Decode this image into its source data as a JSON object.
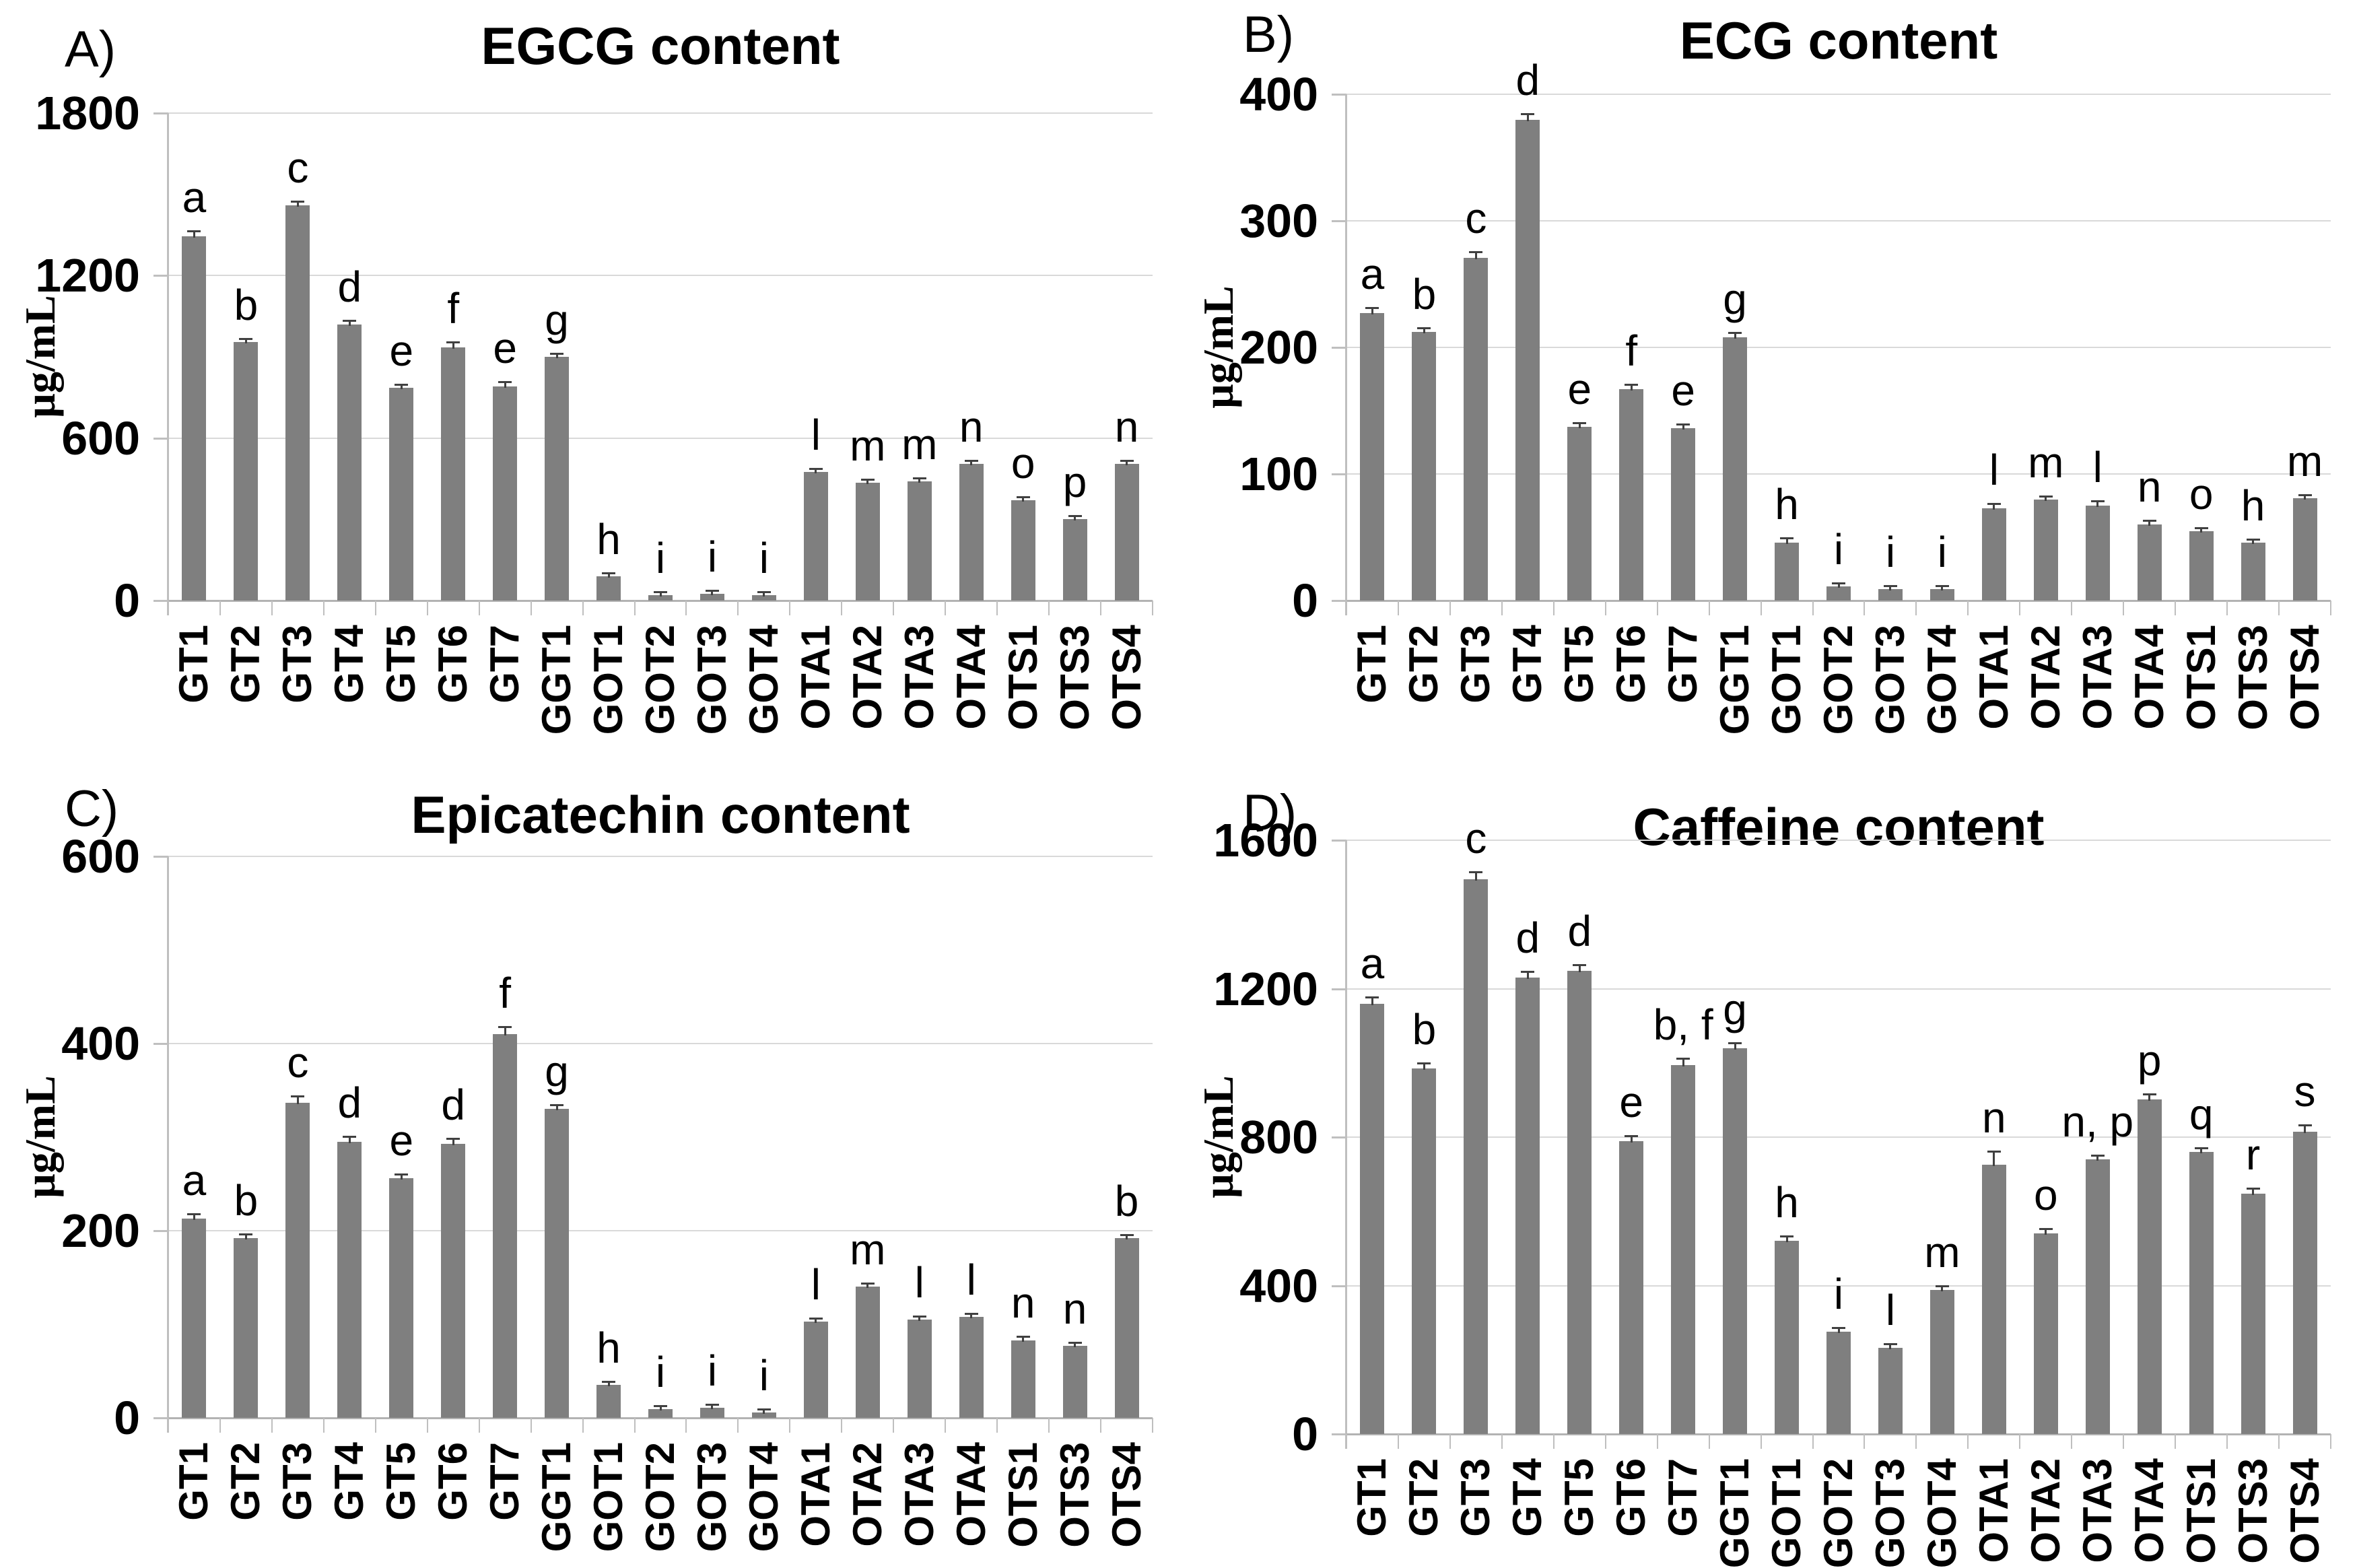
{
  "figure": {
    "background": "#ffffff",
    "bar_color": "#7f7f7f",
    "gridline_color": "#d9d9d9",
    "axis_color": "#bfbfbf",
    "error_bar_color": "#404040",
    "units": "µg/mL"
  },
  "chart_data": [
    {
      "type": "bar",
      "panel_label": "A)",
      "title": "EGCG content",
      "ylabel": "µg/mL",
      "ylim": [
        0,
        1800
      ],
      "yticks": [
        0,
        600,
        1200,
        1800
      ],
      "grid": true,
      "legend_position": "none",
      "categories": [
        "GT1",
        "GT2",
        "GT3",
        "GT4",
        "GT5",
        "GT6",
        "GT7",
        "GGT1",
        "GOT1",
        "GOT2",
        "GOT3",
        "GOT4",
        "OTA1",
        "OTA2",
        "OTA3",
        "OTA4",
        "OTS1",
        "OTS3",
        "OTS4"
      ],
      "values": [
        1345,
        955,
        1460,
        1020,
        785,
        935,
        790,
        900,
        90,
        20,
        25,
        20,
        475,
        435,
        440,
        505,
        370,
        300,
        505
      ],
      "errors": [
        18,
        10,
        12,
        12,
        10,
        18,
        15,
        10,
        8,
        5,
        6,
        5,
        10,
        8,
        8,
        8,
        10,
        6,
        8
      ],
      "sig_letters": [
        "a",
        "b",
        "c",
        "d",
        "e",
        "f",
        "e",
        "g",
        "h",
        "i",
        "i",
        "i",
        "l",
        "m",
        "m",
        "n",
        "o",
        "p",
        "n"
      ]
    },
    {
      "type": "bar",
      "panel_label": "B)",
      "title": "ECG content",
      "ylabel": "µg/mL",
      "ylim": [
        0,
        400
      ],
      "yticks": [
        0,
        100,
        200,
        300,
        400
      ],
      "grid": true,
      "legend_position": "none",
      "categories": [
        "GT1",
        "GT2",
        "GT3",
        "GT4",
        "GT5",
        "GT6",
        "GT7",
        "GGT1",
        "GOT1",
        "GOT2",
        "GOT3",
        "GOT4",
        "OTA1",
        "OTA2",
        "OTA3",
        "OTA4",
        "OTS1",
        "OTS3",
        "OTS4"
      ],
      "values": [
        227,
        212,
        271,
        380,
        137,
        167,
        136,
        208,
        46,
        11,
        9,
        9,
        73,
        80,
        75,
        60,
        55,
        46,
        81
      ],
      "errors": [
        4,
        3,
        4,
        4,
        3,
        3,
        3,
        3,
        3,
        2,
        2,
        2,
        3,
        2,
        3,
        3,
        2,
        2,
        2
      ],
      "sig_letters": [
        "a",
        "b",
        "c",
        "d",
        "e",
        "f",
        "e",
        "g",
        "h",
        "i",
        "i",
        "i",
        "l",
        "m",
        "l",
        "n",
        "o",
        "h",
        "m"
      ]
    },
    {
      "type": "bar",
      "panel_label": "C)",
      "title": "Epicatechin content",
      "ylabel": "µg/mL",
      "ylim": [
        0,
        600
      ],
      "yticks": [
        0,
        200,
        400,
        600
      ],
      "grid": true,
      "legend_position": "none",
      "categories": [
        "GT1",
        "GT2",
        "GT3",
        "GT4",
        "GT5",
        "GT6",
        "GT7",
        "GGT1",
        "GOT1",
        "GOT2",
        "GOT3",
        "GOT4",
        "OTA1",
        "OTA2",
        "OTA3",
        "OTA4",
        "OTS1",
        "OTS3",
        "OTS4"
      ],
      "values": [
        213,
        192,
        337,
        295,
        256,
        293,
        410,
        330,
        35,
        9,
        11,
        6,
        103,
        140,
        105,
        108,
        83,
        77,
        192
      ],
      "errors": [
        4,
        4,
        6,
        5,
        4,
        5,
        7,
        4,
        3,
        2,
        2,
        2,
        3,
        3,
        3,
        3,
        3,
        2,
        3
      ],
      "sig_letters": [
        "a",
        "b",
        "c",
        "d",
        "e",
        "d",
        "f",
        "g",
        "h",
        "i",
        "i",
        "i",
        "l",
        "m",
        "l",
        "l",
        "n",
        "n",
        "b"
      ]
    },
    {
      "type": "bar",
      "panel_label": "D)",
      "title": "Caffeine content",
      "ylabel": "µg/mL",
      "ylim": [
        0,
        1600
      ],
      "yticks": [
        0,
        400,
        800,
        1200,
        1600
      ],
      "grid": true,
      "legend_position": "none",
      "categories": [
        "GT1",
        "GT2",
        "GT3",
        "GT4",
        "GT5",
        "GT6",
        "GT7",
        "GGT1",
        "GOT1",
        "GOT2",
        "GOT3",
        "GOT4",
        "OTA1",
        "OTA2",
        "OTA3",
        "OTA4",
        "OTS1",
        "OTS3",
        "OTS4"
      ],
      "values": [
        1160,
        985,
        1495,
        1230,
        1248,
        790,
        995,
        1040,
        520,
        275,
        232,
        388,
        725,
        540,
        740,
        902,
        760,
        648,
        815
      ],
      "errors": [
        15,
        12,
        18,
        15,
        15,
        12,
        15,
        12,
        12,
        10,
        10,
        10,
        35,
        12,
        10,
        12,
        10,
        12,
        15
      ],
      "sig_letters": [
        "a",
        "b",
        "c",
        "d",
        "d",
        "e",
        "b, f",
        "g",
        "h",
        "i",
        "l",
        "m",
        "n",
        "o",
        "n, p",
        "p",
        "q",
        "r",
        "s"
      ]
    }
  ]
}
